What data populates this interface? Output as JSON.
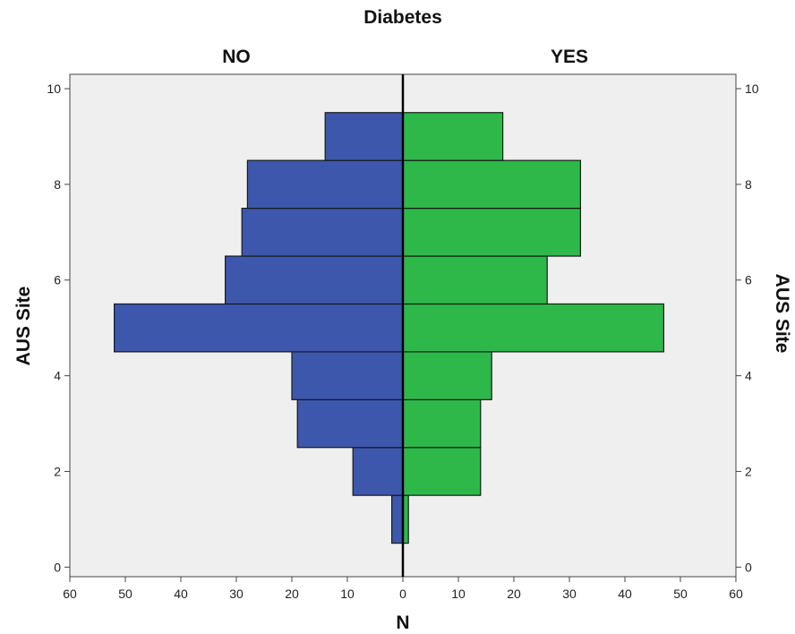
{
  "chart_data": {
    "type": "bar",
    "orientation": "horizontal-back-to-back",
    "title": "Diabetes",
    "panels": [
      "NO",
      "YES"
    ],
    "ylabel": "AUS Site",
    "xlabel": "N",
    "categories": [
      1,
      2,
      3,
      4,
      5,
      6,
      7,
      8,
      9
    ],
    "series": [
      {
        "name": "NO",
        "color": "#3d57ad",
        "values": [
          2,
          9,
          19,
          20,
          52,
          32,
          29,
          28,
          14
        ]
      },
      {
        "name": "YES",
        "color": "#2eb84a",
        "values": [
          1,
          14,
          14,
          16,
          47,
          26,
          32,
          32,
          18
        ]
      }
    ],
    "ylim": [
      -0.2,
      10.3
    ],
    "yticks": [
      0,
      2,
      4,
      6,
      8,
      10
    ],
    "xlim": [
      -60,
      60
    ],
    "xticks": [
      60,
      50,
      40,
      30,
      20,
      10,
      0,
      10,
      20,
      30,
      40,
      50,
      60
    ],
    "grid": false,
    "plot_background": "#efefef"
  }
}
